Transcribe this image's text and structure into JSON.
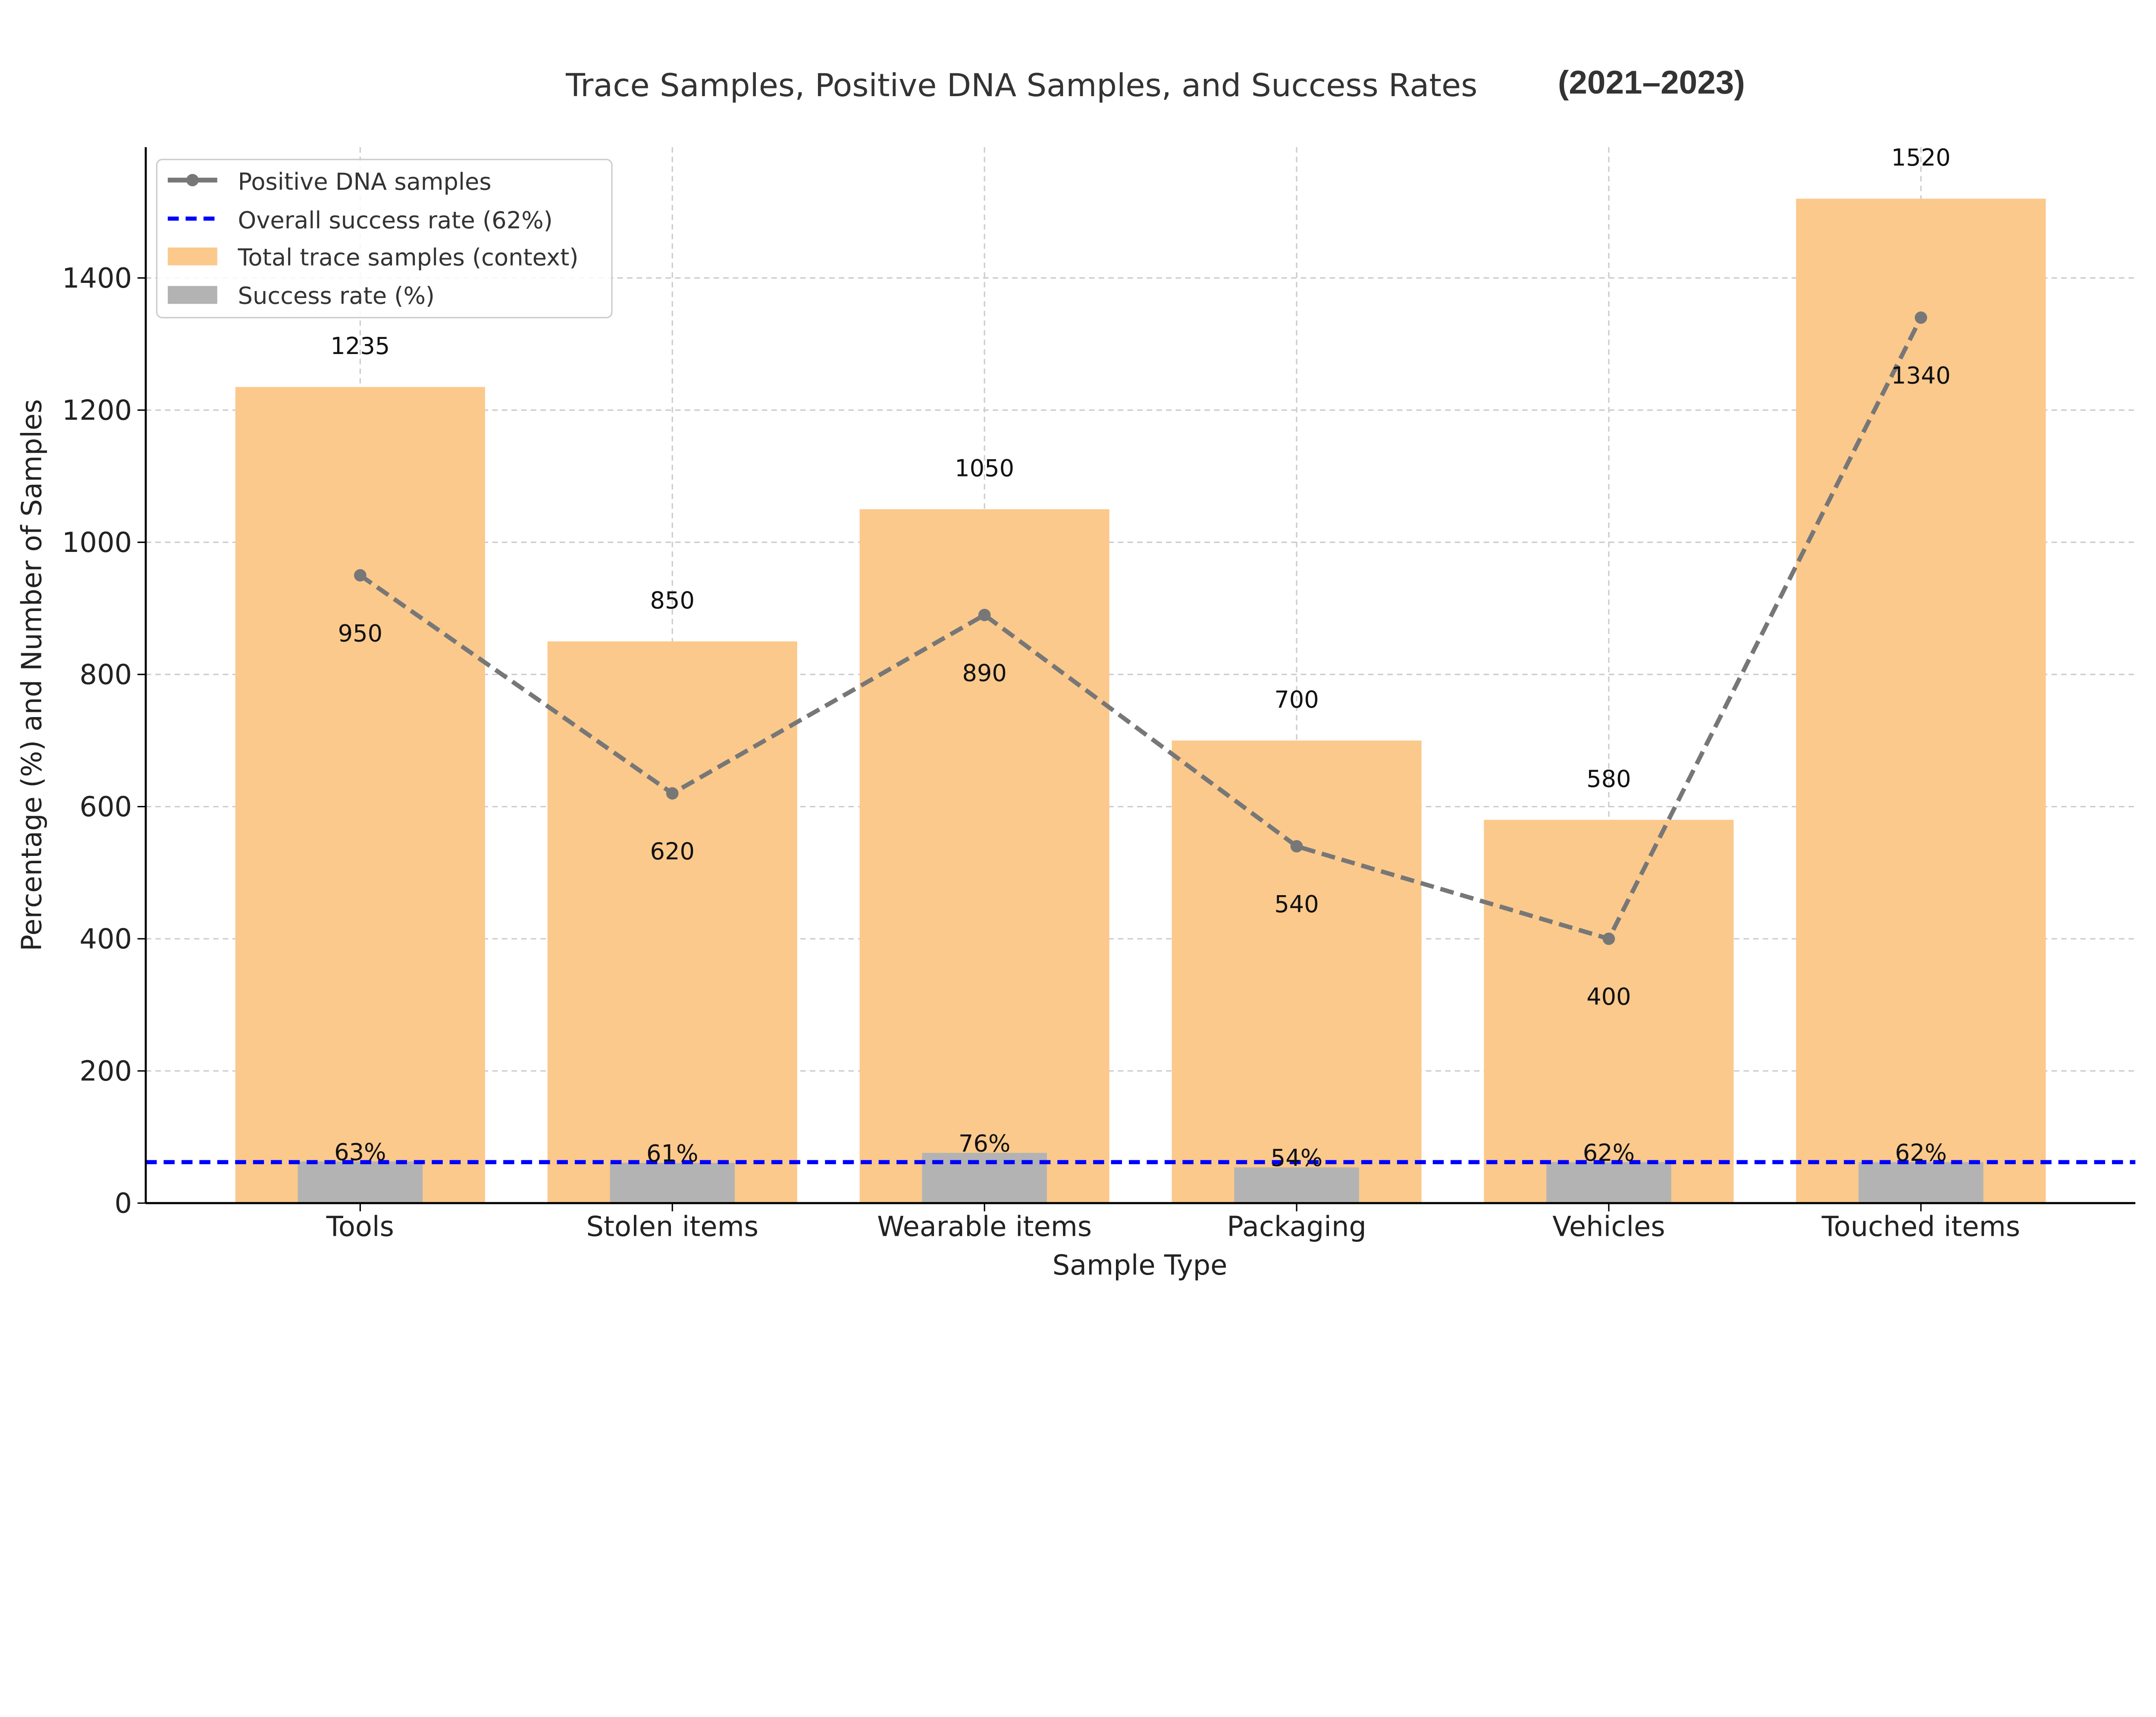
{
  "chart_data": {
    "type": "bar",
    "title": "Trace Samples, Positive DNA Samples, and Success Rates",
    "title_suffix": "(2021–2023)",
    "xlabel": "Sample Type",
    "ylabel": "Percentage (%) and Number of Samples",
    "ylim": [
      0,
      1598
    ],
    "yticks": [
      0,
      200,
      400,
      600,
      800,
      1000,
      1200,
      1400
    ],
    "grid": true,
    "legend_position": "top-left",
    "categories": [
      "Tools",
      "Stolen items",
      "Wearable items",
      "Packaging",
      "Vehicles",
      "Touched items"
    ],
    "series": [
      {
        "name": "Total trace samples (context)",
        "kind": "bar",
        "color": "#fbc98c",
        "values": [
          1235,
          850,
          1050,
          700,
          580,
          1520
        ]
      },
      {
        "name": "Success rate (%)",
        "kind": "bar",
        "color": "#b3b3b3",
        "values": [
          63,
          61,
          76,
          54,
          62,
          62
        ],
        "labels": [
          "63%",
          "61%",
          "76%",
          "54%",
          "62%",
          "62%"
        ]
      },
      {
        "name": "Positive DNA samples",
        "kind": "line",
        "style": "dashed",
        "marker": "circle",
        "color": "#777777",
        "values": [
          950,
          620,
          890,
          540,
          400,
          1340
        ]
      }
    ],
    "reference_line": {
      "name": "Overall success rate (62%)",
      "value": 62,
      "color": "#0000ff",
      "style": "dashed"
    }
  }
}
